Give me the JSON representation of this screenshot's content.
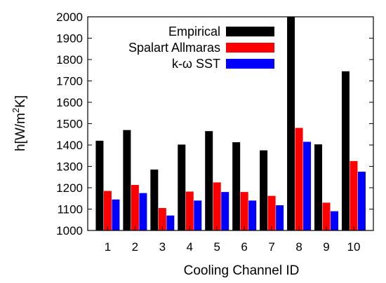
{
  "chart_data": {
    "type": "bar",
    "categories": [
      "1",
      "2",
      "3",
      "4",
      "5",
      "6",
      "7",
      "8",
      "9",
      "10"
    ],
    "series": [
      {
        "name": "Empirical",
        "color": "#000000",
        "values": [
          1420,
          1470,
          1285,
          1402,
          1465,
          1413,
          1375,
          2000,
          1403,
          1745
        ]
      },
      {
        "name": "Spalart Allmaras",
        "color": "#ff0000",
        "values": [
          1185,
          1213,
          1105,
          1182,
          1225,
          1180,
          1162,
          1480,
          1130,
          1325
        ]
      },
      {
        "name": "k-ω SST",
        "color": "#0000ff",
        "values": [
          1145,
          1175,
          1070,
          1140,
          1180,
          1140,
          1118,
          1415,
          1090,
          1275
        ]
      }
    ],
    "xlabel": "Cooling Channel ID",
    "ylabel_parts": {
      "pre": "h[W/m",
      "sup": "2",
      "post": "K]"
    },
    "ylim": [
      1000,
      2000
    ],
    "yticks": [
      1000,
      1100,
      1200,
      1300,
      1400,
      1500,
      1600,
      1700,
      1800,
      1900,
      2000
    ],
    "grid": false,
    "legend_position": "top-right"
  }
}
